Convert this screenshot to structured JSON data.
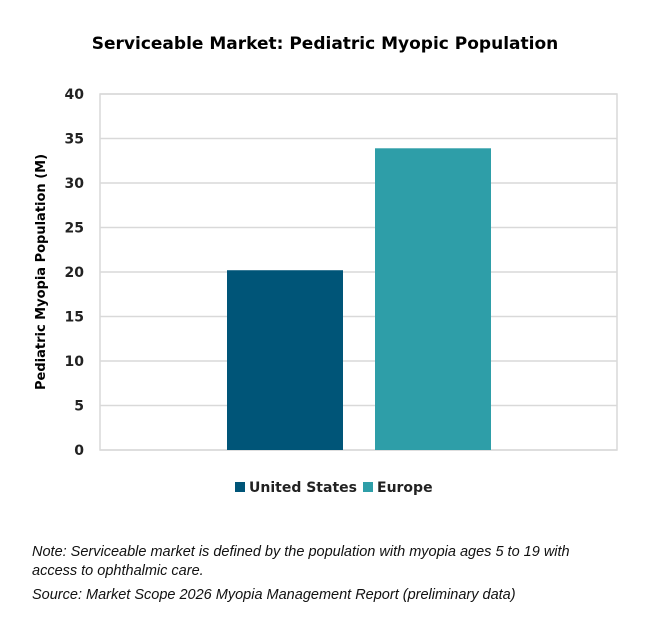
{
  "chart_data": {
    "type": "bar",
    "title": "Serviceable Market: Pediatric Myopic Population",
    "xlabel": "",
    "ylabel": "Pediatric Myopia Population (M)",
    "ylim": [
      0,
      40
    ],
    "yticks": [
      "0",
      "5",
      "10",
      "15",
      "20",
      "25",
      "30",
      "35",
      "40"
    ],
    "grid": true,
    "legend_placement": "bottom",
    "series": [
      {
        "name": "United States",
        "values": [
          20.2
        ],
        "color": "#005578"
      },
      {
        "name": "Europe",
        "values": [
          33.9
        ],
        "color": "#2e9ea8"
      }
    ]
  },
  "notes": {
    "note": "Note: Serviceable market is defined by the population with myopia ages 5 to 19 with access to ophthalmic care.",
    "source": "Source: Market Scope 2026 Myopia Management Report (preliminary data)"
  }
}
